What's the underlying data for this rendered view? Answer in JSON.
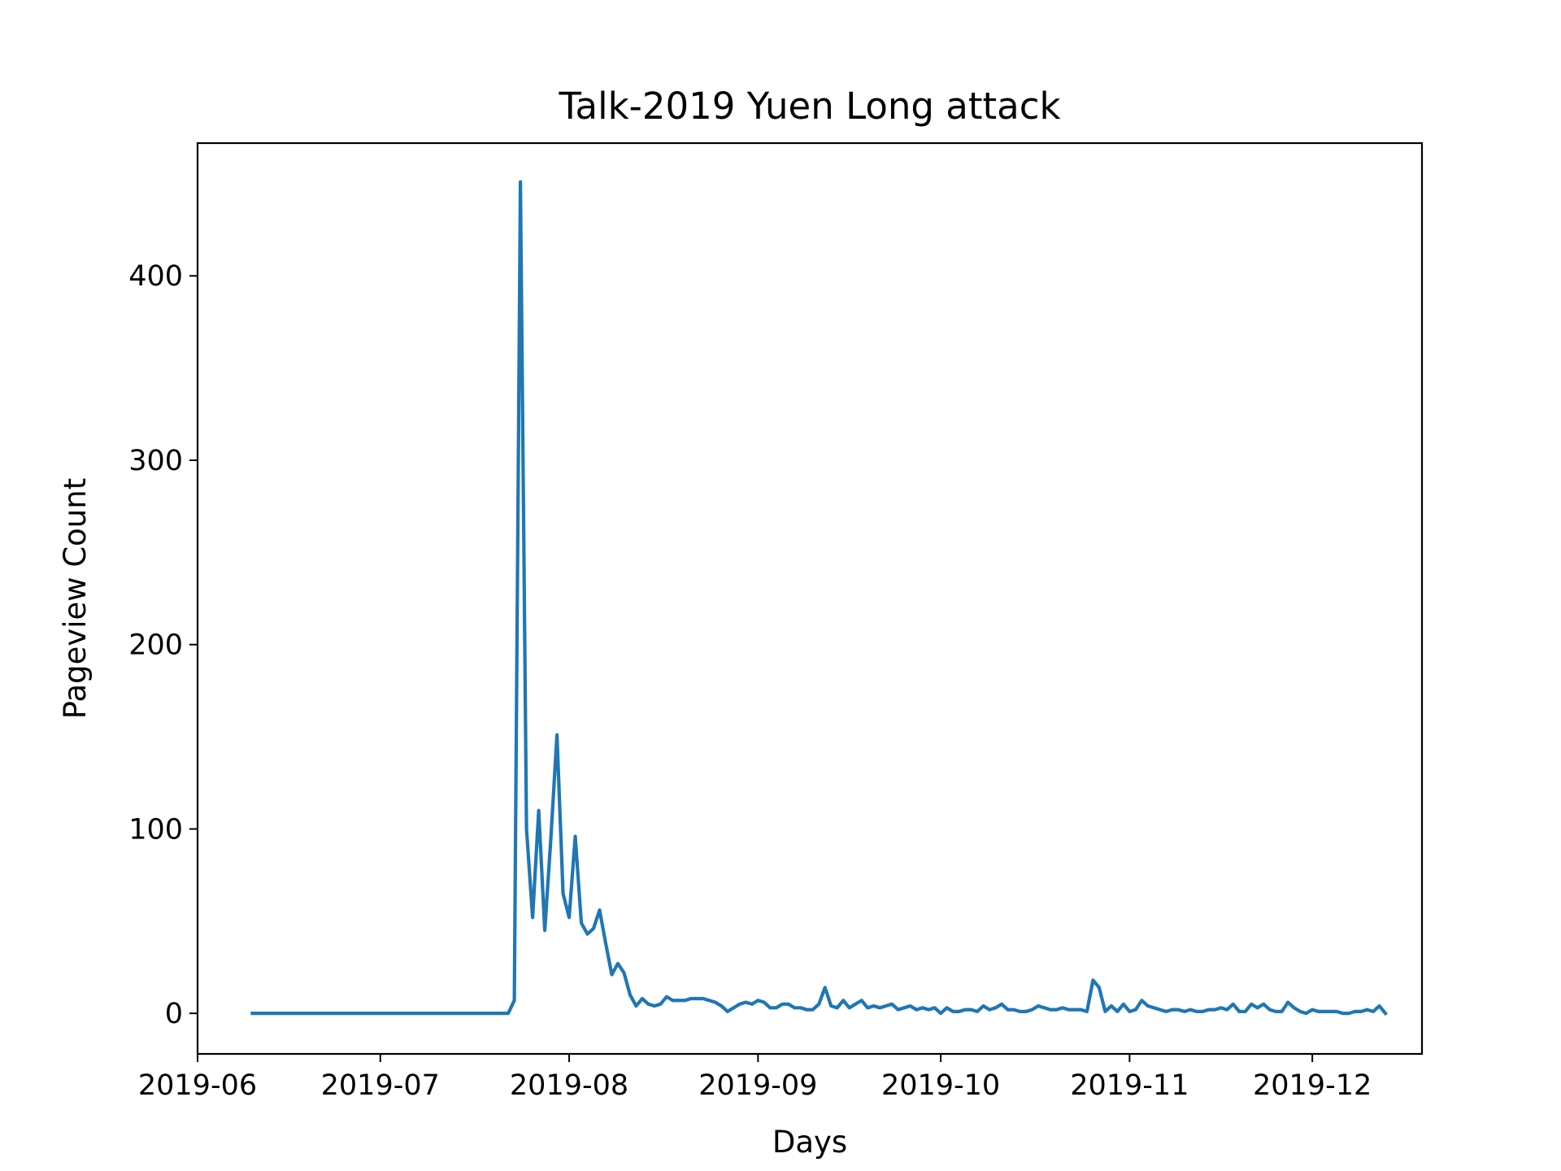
{
  "chart_data": {
    "type": "line",
    "title": "Talk-2019 Yuen Long attack",
    "xlabel": "Days",
    "ylabel": "Pageview Count",
    "x_start": "2019-06-10",
    "xlim": [
      "2019-06-01",
      "2019-12-19"
    ],
    "ylim": [
      -22,
      472
    ],
    "grid": false,
    "legend": "none",
    "x_ticks": [
      "2019-06",
      "2019-07",
      "2019-08",
      "2019-09",
      "2019-10",
      "2019-11",
      "2019-12"
    ],
    "y_ticks": [
      0,
      100,
      200,
      300,
      400
    ],
    "series": [
      {
        "color": "#1f77b4",
        "values": [
          0,
          0,
          0,
          0,
          0,
          0,
          0,
          0,
          0,
          0,
          0,
          0,
          0,
          0,
          0,
          0,
          0,
          0,
          0,
          0,
          0,
          0,
          0,
          0,
          0,
          0,
          0,
          0,
          0,
          0,
          0,
          0,
          0,
          0,
          0,
          0,
          0,
          0,
          0,
          0,
          0,
          0,
          0,
          7,
          451,
          100,
          52,
          110,
          45,
          95,
          151,
          65,
          52,
          96,
          49,
          43,
          46,
          56,
          38,
          21,
          27,
          22,
          10,
          4,
          8,
          5,
          4,
          5,
          9,
          7,
          7,
          7,
          8,
          8,
          8,
          7,
          6,
          4,
          1,
          3,
          5,
          6,
          5,
          7,
          6,
          3,
          3,
          5,
          5,
          3,
          3,
          2,
          2,
          5,
          14,
          4,
          3,
          7,
          3,
          5,
          7,
          3,
          4,
          3,
          4,
          5,
          2,
          3,
          4,
          2,
          3,
          2,
          3,
          0,
          3,
          1,
          1,
          2,
          2,
          1,
          4,
          2,
          3,
          5,
          2,
          2,
          1,
          1,
          2,
          4,
          3,
          2,
          2,
          3,
          2,
          2,
          2,
          1,
          18,
          14,
          1,
          4,
          1,
          5,
          1,
          2,
          7,
          4,
          3,
          2,
          1,
          2,
          2,
          1,
          2,
          1,
          1,
          2,
          2,
          3,
          2,
          5,
          1,
          1,
          5,
          3,
          5,
          2,
          1,
          1,
          6,
          3,
          1,
          0,
          2,
          1,
          1,
          1,
          1,
          0,
          0,
          1,
          1,
          2,
          1,
          4,
          0
        ]
      }
    ]
  }
}
